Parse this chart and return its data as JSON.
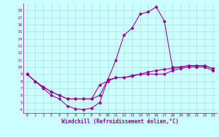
{
  "xlabel": "Windchill (Refroidissement éolien,°C)",
  "x": [
    0,
    1,
    2,
    3,
    4,
    5,
    6,
    7,
    8,
    9,
    10,
    11,
    12,
    13,
    14,
    15,
    16,
    17,
    18,
    19,
    20,
    21,
    22,
    23
  ],
  "line1": [
    9.0,
    8.0,
    7.0,
    6.0,
    5.5,
    4.5,
    4.1,
    4.0,
    4.2,
    5.0,
    8.2,
    8.5,
    8.5,
    8.7,
    9.0,
    9.0,
    9.0,
    9.0,
    9.5,
    9.8,
    10.0,
    10.0,
    10.0,
    9.5
  ],
  "line2": [
    9.0,
    8.0,
    7.2,
    6.5,
    6.0,
    5.5,
    5.5,
    5.5,
    5.5,
    6.0,
    8.2,
    11.0,
    14.5,
    15.5,
    17.5,
    17.8,
    18.5,
    16.5,
    10.0,
    10.0,
    10.2,
    10.2,
    10.2,
    9.8
  ],
  "line3": [
    9.0,
    8.0,
    7.2,
    6.5,
    6.0,
    5.5,
    5.5,
    5.5,
    5.5,
    7.5,
    8.0,
    8.5,
    8.5,
    8.8,
    9.0,
    9.3,
    9.5,
    9.7,
    9.8,
    10.0,
    10.2,
    10.2,
    10.2,
    9.8
  ],
  "line_color": "#990099",
  "bg_color": "#ccffff",
  "grid_color": "#aadddd",
  "ylim": [
    3.5,
    19.0
  ],
  "yticks": [
    4,
    5,
    6,
    7,
    8,
    9,
    10,
    11,
    12,
    13,
    14,
    15,
    16,
    17,
    18
  ],
  "xticks": [
    0,
    1,
    2,
    3,
    4,
    5,
    6,
    7,
    8,
    9,
    10,
    11,
    12,
    13,
    14,
    15,
    16,
    17,
    18,
    19,
    20,
    21,
    22,
    23
  ],
  "tick_fontsize": 4.5,
  "label_fontsize": 5.5
}
